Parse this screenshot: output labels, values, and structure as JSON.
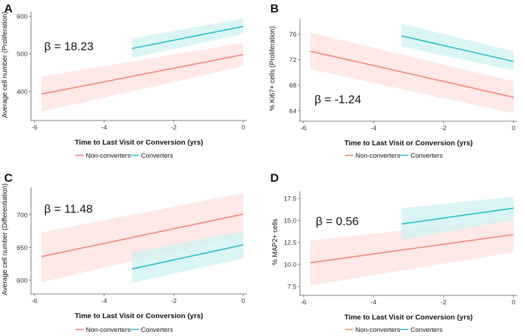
{
  "colors": {
    "non_converters": "#f08070",
    "converters": "#1fbcc4",
    "non_converters_band": "#fde1dd",
    "converters_band": "#cff1f3",
    "axis": "#555555",
    "text": "#111111"
  },
  "chart_data": [
    {
      "panel_label": "A",
      "type": "line",
      "xlabel": "Time to Last Visit or Conversion (yrs)",
      "ylabel": "Average cell number (Proliferation)",
      "xlim": [
        -6.1,
        0.1
      ],
      "ylim": [
        330,
        612
      ],
      "xticks": [
        -6,
        -4,
        -2,
        0
      ],
      "yticks": [
        400,
        500,
        600
      ],
      "annotation": "β = 18.23",
      "legend": [
        "Non-converters",
        "Converters"
      ],
      "series": [
        {
          "name": "Non-converters",
          "color_key": "non_converters",
          "x": [
            -5.8,
            0
          ],
          "y": [
            393,
            498
          ],
          "lower": [
            346,
            467
          ],
          "upper": [
            440,
            529
          ]
        },
        {
          "name": "Converters",
          "color_key": "converters",
          "x": [
            -3.2,
            0
          ],
          "y": [
            514,
            573
          ],
          "lower": [
            489,
            553
          ],
          "upper": [
            541,
            594
          ]
        }
      ]
    },
    {
      "panel_label": "B",
      "type": "line",
      "xlabel": "Time to Last Visit or Conversion (yrs)",
      "ylabel": "% Ki67+ cells (Proliferation)",
      "xlim": [
        -6.1,
        0.1
      ],
      "ylim": [
        62.8,
        78.4
      ],
      "xticks": [
        -6,
        -4,
        -2,
        0
      ],
      "yticks": [
        64,
        68,
        72,
        76
      ],
      "annotation": "β = -1.24",
      "legend": [
        "Non-converters",
        "Converters"
      ],
      "series": [
        {
          "name": "Non-converters",
          "color_key": "non_converters",
          "x": [
            -5.8,
            0
          ],
          "y": [
            73.3,
            66.1
          ],
          "lower": [
            70.5,
            63.6
          ],
          "upper": [
            76.2,
            68.6
          ]
        },
        {
          "name": "Converters",
          "color_key": "converters",
          "x": [
            -3.2,
            0
          ],
          "y": [
            75.7,
            71.7
          ],
          "lower": [
            74.0,
            70.3
          ],
          "upper": [
            77.6,
            73.3
          ]
        }
      ]
    },
    {
      "panel_label": "C",
      "type": "line",
      "xlabel": "Time to Last Visit or Conversion (yrs)",
      "ylabel": "Average cell number (Differentiation)",
      "xlim": [
        -6.1,
        0.1
      ],
      "ylim": [
        583,
        742
      ],
      "xticks": [
        -6,
        -4,
        -2,
        0
      ],
      "yticks": [
        600,
        650,
        700
      ],
      "annotation": "β = 11.48",
      "legend": [
        "Non-converters",
        "Converters"
      ],
      "series": [
        {
          "name": "Non-converters",
          "color_key": "non_converters",
          "x": [
            -5.8,
            0
          ],
          "y": [
            636,
            701
          ],
          "lower": [
            597,
            668
          ],
          "upper": [
            673,
            733
          ]
        },
        {
          "name": "Converters",
          "color_key": "converters",
          "x": [
            -3.2,
            0
          ],
          "y": [
            617,
            654
          ],
          "lower": [
            596,
            633
          ],
          "upper": [
            642,
            675
          ]
        }
      ]
    },
    {
      "panel_label": "D",
      "type": "line",
      "xlabel": "Time to Last Visit or Conversion (yrs)",
      "ylabel": "% MAP2+ cells",
      "xlim": [
        -6.1,
        0.1
      ],
      "ylim": [
        6.8,
        18.3
      ],
      "xticks": [
        -6,
        -4,
        -2,
        0
      ],
      "yticks": [
        7.5,
        10.0,
        12.5,
        15.0,
        17.5
      ],
      "annotation": "β = 0.56",
      "legend": [
        "Non-converters",
        "Converters"
      ],
      "series": [
        {
          "name": "Non-converters",
          "color_key": "non_converters",
          "x": [
            -5.8,
            0
          ],
          "y": [
            10.2,
            13.4
          ],
          "lower": [
            7.6,
            11.4
          ],
          "upper": [
            12.7,
            15.3
          ]
        },
        {
          "name": "Converters",
          "color_key": "converters",
          "x": [
            -3.2,
            0
          ],
          "y": [
            14.6,
            16.4
          ],
          "lower": [
            12.8,
            15.1
          ],
          "upper": [
            16.4,
            17.7
          ]
        }
      ]
    }
  ]
}
